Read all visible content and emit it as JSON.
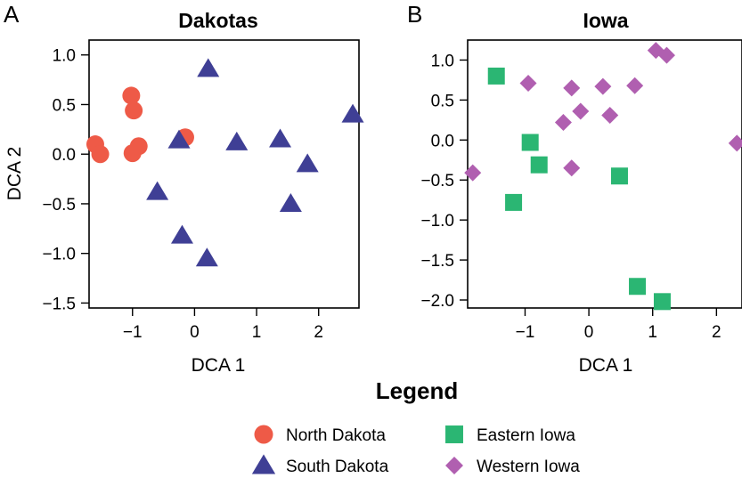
{
  "figure": {
    "legend_title": "Legend",
    "legend_entries": [
      {
        "name": "North Dakota",
        "marker": "circle",
        "color": "#EE5A47"
      },
      {
        "name": "South Dakota",
        "marker": "triangle",
        "color": "#3F3F95"
      },
      {
        "name": "Eastern Iowa",
        "marker": "square",
        "color": "#2BB673"
      },
      {
        "name": "Western Iowa",
        "marker": "diamond",
        "color": "#B05FB0"
      }
    ]
  },
  "chart_data": [
    {
      "type": "scatter",
      "panel": "A",
      "title": "Dakotas",
      "xlabel": "DCA 1",
      "ylabel": "DCA 2",
      "xlim": [
        -1.7,
        2.65
      ],
      "ylim": [
        -1.55,
        1.15
      ],
      "xticks": [
        -1,
        0,
        1,
        2
      ],
      "xtick_labels": [
        "−1",
        "0",
        "1",
        "2"
      ],
      "yticks": [
        -1.5,
        -1.0,
        -0.5,
        0.0,
        0.5,
        1.0
      ],
      "ytick_labels": [
        "−1.5",
        "−1.0",
        "−0.5",
        "0.0",
        "0.5",
        "1.0"
      ],
      "grid": false,
      "series": [
        {
          "name": "North Dakota",
          "marker": "circle",
          "color": "#EE5A47",
          "x": [
            -1.6,
            -1.52,
            -1.02,
            -0.98,
            -1.0,
            -0.9,
            -0.15
          ],
          "y": [
            0.1,
            0.0,
            0.59,
            0.44,
            0.01,
            0.08,
            0.17
          ]
        },
        {
          "name": "South Dakota",
          "marker": "triangle",
          "color": "#3F3F95",
          "x": [
            0.22,
            -0.25,
            0.68,
            1.38,
            2.55,
            1.82,
            1.55,
            -0.6,
            -0.2,
            0.2
          ],
          "y": [
            0.86,
            0.14,
            0.12,
            0.15,
            0.4,
            -0.1,
            -0.5,
            -0.38,
            -0.82,
            -1.05
          ]
        }
      ]
    },
    {
      "type": "scatter",
      "panel": "B",
      "title": "Iowa",
      "xlabel": "DCA 1",
      "ylabel": "",
      "xlim": [
        -1.9,
        2.4
      ],
      "ylim": [
        -2.1,
        1.25
      ],
      "xticks": [
        -1,
        0,
        1,
        2
      ],
      "xtick_labels": [
        "−1",
        "0",
        "1",
        "2"
      ],
      "yticks": [
        -2.0,
        -1.5,
        -1.0,
        -0.5,
        0.0,
        0.5,
        1.0
      ],
      "ytick_labels": [
        "−2.0",
        "−1.5",
        "−1.0",
        "−0.5",
        "0.0",
        "0.5",
        "1.0"
      ],
      "grid": false,
      "series": [
        {
          "name": "Eastern Iowa",
          "marker": "square",
          "color": "#2BB673",
          "x": [
            -1.45,
            -0.92,
            -0.78,
            0.48,
            -1.18,
            0.76,
            1.15
          ],
          "y": [
            0.8,
            -0.03,
            -0.31,
            -0.45,
            -0.78,
            -1.83,
            -2.02
          ]
        },
        {
          "name": "Western Iowa",
          "marker": "diamond",
          "color": "#B05FB0",
          "x": [
            -0.95,
            -0.27,
            0.22,
            0.72,
            1.05,
            1.22,
            -0.4,
            -0.13,
            0.33,
            -0.27,
            -1.82,
            2.32
          ],
          "y": [
            0.71,
            0.65,
            0.67,
            0.68,
            1.12,
            1.06,
            0.22,
            0.36,
            0.31,
            -0.35,
            -0.41,
            -0.04
          ]
        }
      ]
    }
  ]
}
